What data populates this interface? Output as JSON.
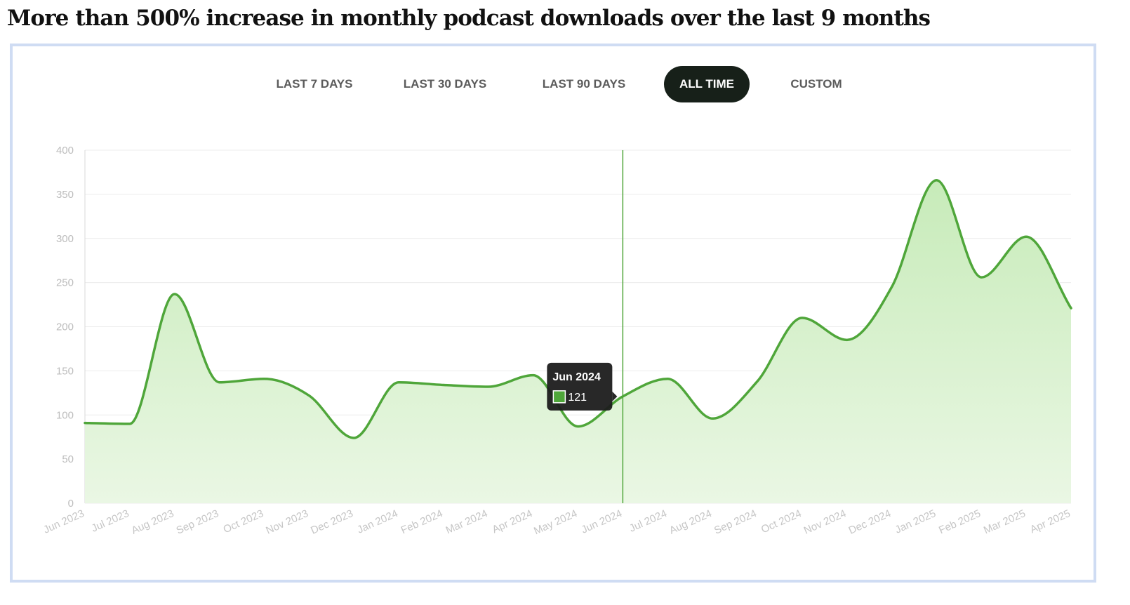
{
  "title": "More than 500% increase in monthly podcast downloads over the last 9 months",
  "range_tabs": [
    {
      "label": "LAST 7 DAYS",
      "active": false
    },
    {
      "label": "LAST 30 DAYS",
      "active": false
    },
    {
      "label": "LAST 90 DAYS",
      "active": false
    },
    {
      "label": "ALL TIME",
      "active": true
    },
    {
      "label": "CUSTOM",
      "active": false
    }
  ],
  "colors": {
    "line": "#4fa63a",
    "fill_top": "#c7ebb9",
    "fill_bottom": "#eaf7e4",
    "grid": "#ececec",
    "active_tab_bg": "#172019",
    "tooltip_bg": "#1c1c1c",
    "card_border": "#cfdcf3"
  },
  "chart_data": {
    "type": "area",
    "title": "",
    "xlabel": "",
    "ylabel": "",
    "ylim": [
      0,
      400
    ],
    "yticks": [
      0,
      50,
      100,
      150,
      200,
      250,
      300,
      350,
      400
    ],
    "grid": true,
    "smooth": true,
    "categories": [
      "Jun 2023",
      "Jul 2023",
      "Aug 2023",
      "Sep 2023",
      "Oct 2023",
      "Nov 2023",
      "Dec 2023",
      "Jan 2024",
      "Feb 2024",
      "Mar 2024",
      "Apr 2024",
      "May 2024",
      "Jun 2024",
      "Jul 2024",
      "Aug 2024",
      "Sep 2024",
      "Oct 2024",
      "Nov 2024",
      "Dec 2024",
      "Jan 2025",
      "Feb 2025",
      "Mar 2025",
      "Apr 2025"
    ],
    "values": [
      91,
      90,
      237,
      137,
      141,
      122,
      74,
      137,
      134,
      132,
      145,
      87,
      121,
      141,
      96,
      138,
      210,
      185,
      245,
      366,
      256,
      302,
      221
    ],
    "hover": {
      "category": "Jun 2024",
      "label": "Jun 2024",
      "value": "121"
    }
  }
}
